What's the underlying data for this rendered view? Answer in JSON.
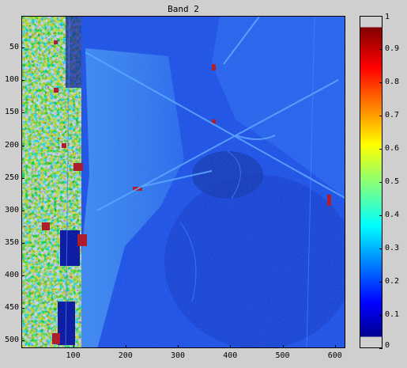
{
  "figure": {
    "title": "Band 2"
  },
  "image_axes": {
    "x_ticks": [
      "100",
      "200",
      "300",
      "400",
      "500",
      "600"
    ],
    "y_ticks": [
      "50",
      "100",
      "150",
      "200",
      "250",
      "300",
      "350",
      "400",
      "450",
      "500"
    ],
    "x_range": [
      1,
      620
    ],
    "y_range": [
      1,
      512
    ],
    "content": "satellite-band-image"
  },
  "colorbar": {
    "colormap": "jet",
    "ticks": [
      "0",
      "0.1",
      "0.2",
      "0.3",
      "0.4",
      "0.5",
      "0.6",
      "0.7",
      "0.8",
      "0.9",
      "1"
    ],
    "range": [
      0,
      1
    ]
  },
  "colors": {
    "background": "#cfcfcf",
    "deep_blue": "#0000a0",
    "mid_blue": "#1d4ff0",
    "light_blue": "#4a8ff5",
    "red": "#c80000"
  }
}
